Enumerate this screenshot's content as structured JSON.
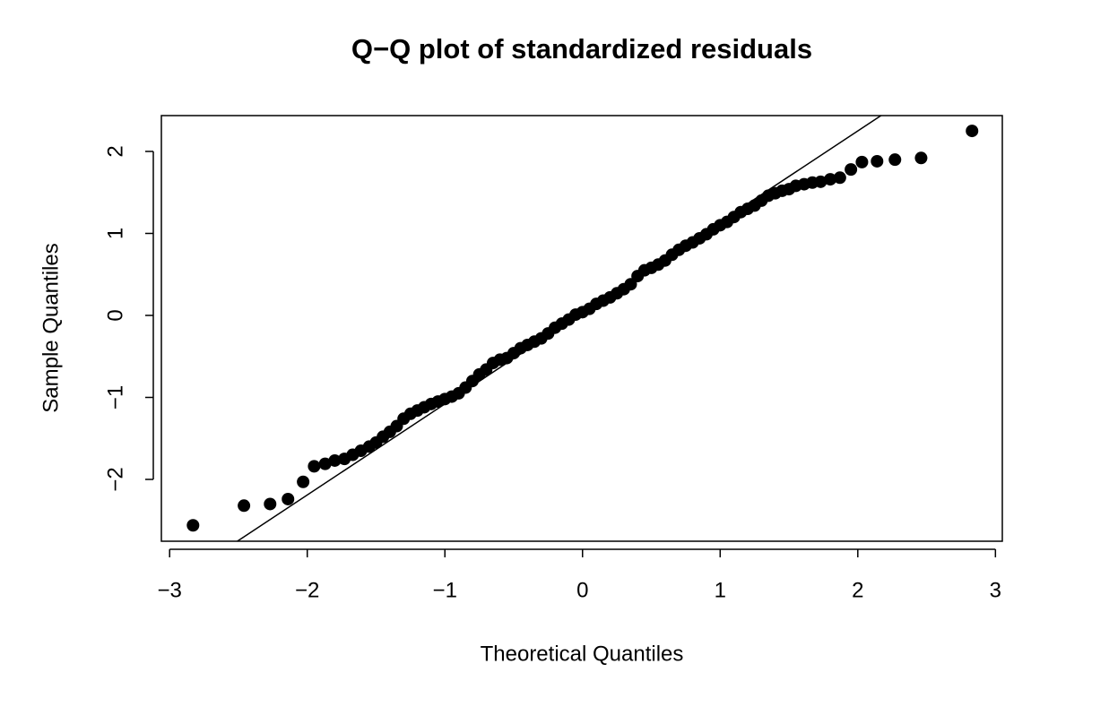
{
  "chart_data": {
    "type": "scatter",
    "title": "Q−Q plot of standardized residuals",
    "x_label": "Theoretical Quantiles",
    "y_label": "Sample Quantiles",
    "color": "#000000",
    "xlim": [
      -3.06,
      3.05
    ],
    "ylim": [
      -2.754,
      2.437
    ],
    "xticks": [
      {
        "value": -3,
        "label": "−3"
      },
      {
        "value": -2,
        "label": "−2"
      },
      {
        "value": -1,
        "label": "−1"
      },
      0,
      1,
      2,
      3
    ],
    "yticks": [
      {
        "value": -2,
        "label": "−2"
      },
      {
        "value": -1,
        "label": "−1"
      },
      0,
      1,
      2
    ],
    "line": {
      "intercept": 0.03,
      "slope": 1.11
    },
    "x": [
      -2.83,
      -2.46,
      -2.27,
      -2.14,
      -2.03,
      -1.95,
      -1.87,
      -1.8,
      -1.73,
      -1.67,
      -1.61,
      -1.55,
      -1.5,
      -1.45,
      -1.4,
      -1.35,
      -1.3,
      -1.25,
      -1.2,
      -1.15,
      -1.1,
      -1.05,
      -1.0,
      -0.95,
      -0.9,
      -0.85,
      -0.8,
      -0.75,
      -0.7,
      -0.65,
      -0.6,
      -0.55,
      -0.5,
      -0.45,
      -0.4,
      -0.35,
      -0.3,
      -0.25,
      -0.2,
      -0.15,
      -0.1,
      -0.05,
      0.0,
      0.05,
      0.1,
      0.15,
      0.2,
      0.25,
      0.3,
      0.35,
      0.4,
      0.45,
      0.5,
      0.55,
      0.6,
      0.65,
      0.7,
      0.75,
      0.8,
      0.85,
      0.9,
      0.95,
      1.0,
      1.05,
      1.1,
      1.15,
      1.2,
      1.25,
      1.3,
      1.35,
      1.4,
      1.45,
      1.5,
      1.55,
      1.61,
      1.67,
      1.73,
      1.8,
      1.87,
      1.95,
      2.03,
      2.14,
      2.27,
      2.46,
      2.83
    ],
    "values": [
      -2.56,
      -2.32,
      -2.3,
      -2.24,
      -2.03,
      -1.84,
      -1.81,
      -1.77,
      -1.75,
      -1.7,
      -1.65,
      -1.6,
      -1.55,
      -1.48,
      -1.42,
      -1.35,
      -1.26,
      -1.2,
      -1.16,
      -1.12,
      -1.08,
      -1.05,
      -1.02,
      -0.99,
      -0.95,
      -0.88,
      -0.8,
      -0.72,
      -0.66,
      -0.58,
      -0.54,
      -0.52,
      -0.46,
      -0.4,
      -0.36,
      -0.32,
      -0.28,
      -0.22,
      -0.15,
      -0.1,
      -0.05,
      0.01,
      0.04,
      0.08,
      0.14,
      0.18,
      0.22,
      0.27,
      0.32,
      0.38,
      0.48,
      0.55,
      0.58,
      0.62,
      0.67,
      0.74,
      0.8,
      0.85,
      0.89,
      0.94,
      0.99,
      1.05,
      1.1,
      1.14,
      1.2,
      1.26,
      1.3,
      1.34,
      1.4,
      1.46,
      1.49,
      1.52,
      1.54,
      1.58,
      1.6,
      1.62,
      1.63,
      1.66,
      1.68,
      1.78,
      1.87,
      1.88,
      1.9,
      1.92,
      2.25
    ]
  }
}
